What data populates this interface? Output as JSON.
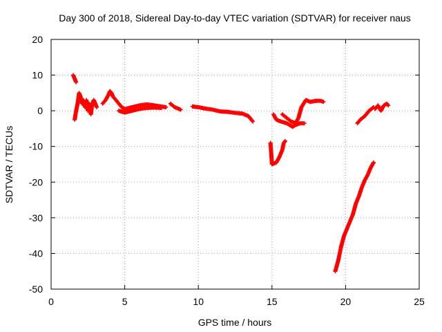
{
  "chart_data": {
    "type": "scatter",
    "title": "Day 300 of 2018, Sidereal Day-to-day VTEC variation (SDTVAR) for receiver naus",
    "xlabel": "GPS time / hours",
    "ylabel": "SDTVAR / TECUs",
    "xlim": [
      0,
      25
    ],
    "ylim": [
      -50,
      20
    ],
    "xticks": [
      0,
      5,
      10,
      15,
      20,
      25
    ],
    "yticks": [
      -50,
      -40,
      -30,
      -20,
      -10,
      0,
      10,
      20
    ],
    "grid": true,
    "marker": "+",
    "color": "#ff0000",
    "series": [
      {
        "segments": [
          [
            [
              1.5,
              10
            ],
            [
              1.6,
              9
            ],
            [
              1.7,
              8
            ]
          ],
          [
            [
              1.6,
              -2.5
            ],
            [
              1.7,
              0
            ],
            [
              1.8,
              2
            ],
            [
              1.9,
              5
            ],
            [
              2.0,
              4
            ],
            [
              2.1,
              2
            ],
            [
              2.2,
              3
            ],
            [
              2.3,
              1
            ],
            [
              2.4,
              3
            ],
            [
              2.5,
              0
            ],
            [
              2.6,
              2
            ],
            [
              2.7,
              -1
            ],
            [
              2.8,
              2
            ],
            [
              2.9,
              3
            ],
            [
              3.0,
              2
            ],
            [
              3.1,
              1
            ]
          ],
          [
            [
              3.5,
              2
            ],
            [
              3.7,
              3
            ],
            [
              3.9,
              4.5
            ],
            [
              4.0,
              5.5
            ],
            [
              4.1,
              5
            ],
            [
              4.2,
              4
            ],
            [
              4.4,
              3
            ],
            [
              4.6,
              2
            ],
            [
              4.8,
              1
            ],
            [
              5.0,
              0.5
            ],
            [
              5.5,
              1
            ],
            [
              6.0,
              1.5
            ],
            [
              6.5,
              1.8
            ],
            [
              7.0,
              1.5
            ],
            [
              7.5,
              1.2
            ],
            [
              7.8,
              1
            ]
          ],
          [
            [
              4.6,
              0
            ],
            [
              5.0,
              -0.5
            ],
            [
              5.5,
              0
            ],
            [
              6.0,
              0.5
            ],
            [
              6.5,
              0.8
            ],
            [
              7.0,
              0.9
            ],
            [
              7.5,
              0.8
            ]
          ],
          [
            [
              8.1,
              2
            ],
            [
              8.4,
              1
            ],
            [
              8.8,
              0.3
            ]
          ],
          [
            [
              9.6,
              1.2
            ],
            [
              10.0,
              1
            ],
            [
              10.5,
              0.6
            ],
            [
              11.0,
              0.3
            ],
            [
              11.5,
              -0.2
            ],
            [
              12.0,
              -0.3
            ],
            [
              12.5,
              -0.6
            ],
            [
              13.0,
              -0.8
            ],
            [
              13.4,
              -1.5
            ],
            [
              13.7,
              -3
            ]
          ],
          [
            [
              14.9,
              -9
            ],
            [
              15.0,
              -15
            ],
            [
              15.3,
              -14.5
            ],
            [
              15.5,
              -13
            ],
            [
              15.7,
              -11
            ],
            [
              15.8,
              -9
            ],
            [
              15.9,
              -8.5
            ]
          ],
          [
            [
              15.1,
              -1
            ],
            [
              15.3,
              -2.5
            ],
            [
              15.6,
              -3
            ],
            [
              16.0,
              -3.5
            ],
            [
              16.4,
              -4.5
            ],
            [
              16.6,
              -4
            ],
            [
              16.9,
              -3.5
            ],
            [
              17.2,
              -3.5
            ]
          ],
          [
            [
              15.7,
              -1
            ],
            [
              16.0,
              -2
            ],
            [
              16.3,
              -3
            ],
            [
              16.6,
              -3.5
            ],
            [
              16.8,
              -2
            ],
            [
              17.0,
              1
            ],
            [
              17.3,
              3
            ],
            [
              17.6,
              2.5
            ],
            [
              18.0,
              2.8
            ],
            [
              18.3,
              2.8
            ],
            [
              18.5,
              2.5
            ]
          ],
          [
            [
              19.3,
              -45
            ],
            [
              19.5,
              -42
            ],
            [
              19.7,
              -38
            ],
            [
              19.9,
              -35
            ],
            [
              20.1,
              -33
            ],
            [
              20.3,
              -31
            ],
            [
              20.5,
              -29
            ],
            [
              20.7,
              -26
            ],
            [
              20.9,
              -24
            ],
            [
              21.1,
              -21.5
            ],
            [
              21.3,
              -19.5
            ],
            [
              21.5,
              -18
            ],
            [
              21.7,
              -16
            ],
            [
              21.9,
              -14.5
            ]
          ],
          [
            [
              20.8,
              -3.5
            ],
            [
              21.0,
              -2.5
            ],
            [
              21.3,
              -1.5
            ],
            [
              21.6,
              0
            ],
            [
              21.9,
              1
            ]
          ],
          [
            [
              22.0,
              0.5
            ],
            [
              22.2,
              1.5
            ],
            [
              22.4,
              0
            ],
            [
              22.6,
              1.5
            ],
            [
              22.8,
              2
            ],
            [
              22.9,
              1.5
            ]
          ]
        ]
      }
    ]
  }
}
